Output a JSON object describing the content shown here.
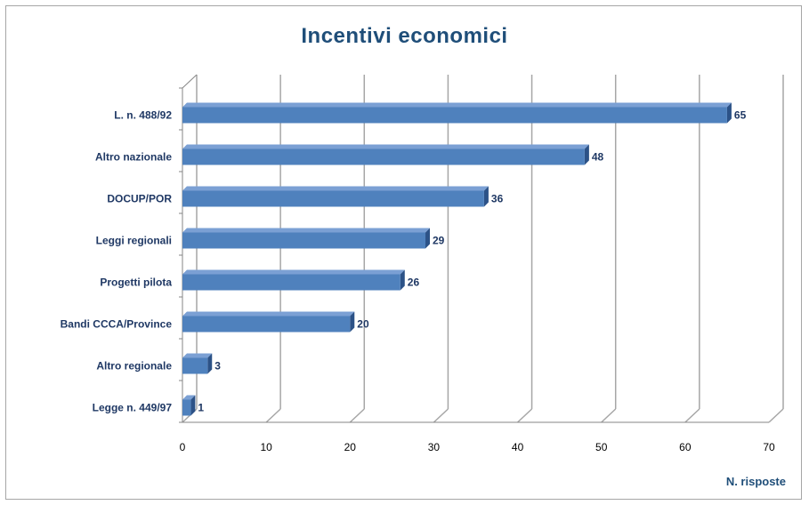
{
  "chart_data": {
    "type": "bar",
    "orientation": "horizontal",
    "title": "Incentivi economici",
    "xlabel": "N. risposte",
    "ylabel": "",
    "categories": [
      "L. n. 488/92",
      "Altro nazionale",
      "DOCUP/POR",
      "Leggi regionali",
      "Progetti pilota",
      "Bandi CCCA/Province",
      "Altro regionale",
      "Legge n. 449/97"
    ],
    "values": [
      65,
      48,
      36,
      29,
      26,
      20,
      3,
      1
    ],
    "data_labels": [
      "65",
      "48",
      "36",
      "29",
      "26",
      "20",
      "3",
      "1"
    ],
    "xlim": [
      0,
      70
    ],
    "xticks": [
      "0",
      "10",
      "20",
      "30",
      "40",
      "50",
      "60",
      "70"
    ],
    "grid": true,
    "legend": "none",
    "colors": {
      "bar": "#4f81bd",
      "bar_top": "#7ba0d4",
      "bar_side": "#2c5287",
      "grid": "#a6a6a6",
      "text": "#1f3864"
    }
  }
}
